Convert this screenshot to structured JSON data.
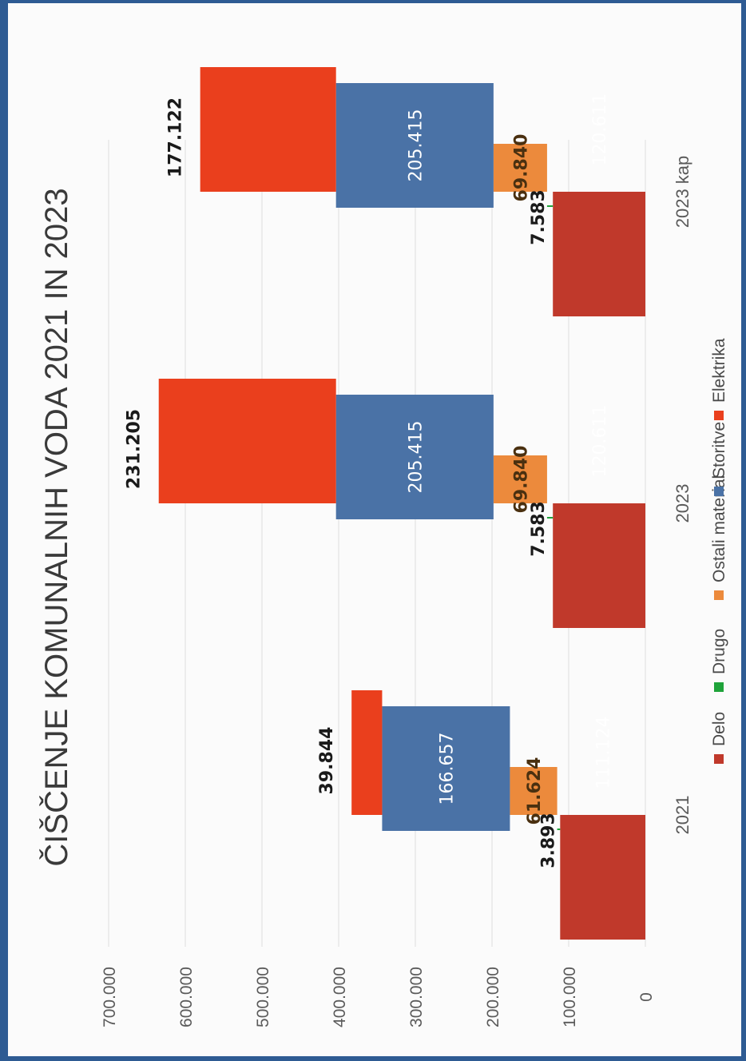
{
  "chart_data": {
    "type": "bar",
    "subtype": "stacked-waterfall",
    "orientation": "rotated-90-ccw",
    "title": "ČIŠČENJE KOMUNALNIH VODA 2021 IN 2023",
    "categories": [
      "2021",
      "2023",
      "2023 kap"
    ],
    "series": [
      {
        "name": "Delo",
        "color": "#c0392b",
        "values": [
          111124,
          120611,
          120611
        ],
        "labels": [
          "111.124",
          "120.611",
          "120.611"
        ]
      },
      {
        "name": "Drugo",
        "color": "#1fa33a",
        "values": [
          3893,
          7583,
          7583
        ],
        "labels": [
          "3.893",
          "7.583",
          "7.583"
        ]
      },
      {
        "name": "Ostali material",
        "color": "#ec8a3c",
        "values": [
          61624,
          69840,
          69840
        ],
        "labels": [
          "61.624",
          "69.840",
          "69.840"
        ]
      },
      {
        "name": "Storitve",
        "color": "#4a72a6",
        "values": [
          166657,
          205415,
          205415
        ],
        "labels": [
          "166.657",
          "205.415",
          "205.415"
        ]
      },
      {
        "name": "Elektrika",
        "color": "#ea3f1d",
        "values": [
          39844,
          231205,
          177122
        ],
        "labels": [
          "39.844",
          "231.205",
          "177.122"
        ]
      }
    ],
    "y_ticks": [
      "0",
      "100.000",
      "200.000",
      "300.000",
      "400.000",
      "500.000",
      "600.000",
      "700.000"
    ],
    "ylim": [
      0,
      700000
    ],
    "grid": true,
    "legend_position": "bottom"
  }
}
